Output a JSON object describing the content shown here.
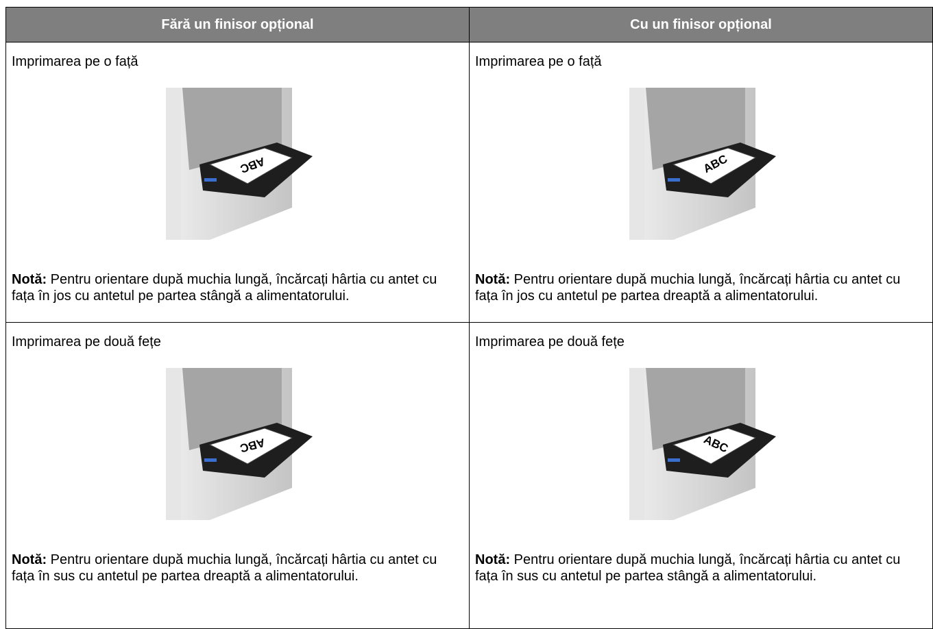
{
  "table": {
    "headers": [
      "Fără un finisor opțional",
      "Cu un finisor opțional"
    ],
    "rows": [
      [
        {
          "heading": "Imprimarea pe o față",
          "paper_label": "ABC",
          "note_label": "Notă:",
          "note": "Pentru orientare după muchia lungă, încărcați hârtia cu antet cu fața în jos cu antetul pe partea stângă a alimentatorului."
        },
        {
          "heading": "Imprimarea pe o față",
          "paper_label": "ABC",
          "note_label": "Notă:",
          "note": "Pentru orientare după muchia lungă, încărcați hârtia cu antet cu fața în jos cu antetul pe partea dreaptă a alimentatorului."
        }
      ],
      [
        {
          "heading": "Imprimarea pe două fețe",
          "paper_label": "ABC",
          "note_label": "Notă:",
          "note": "Pentru orientare după muchia lungă, încărcați hârtia cu antet cu fața în sus cu antetul pe partea dreaptă a alimentatorului."
        },
        {
          "heading": "Imprimarea pe două fețe",
          "paper_label": "ABC",
          "note_label": "Notă:",
          "note": "Pentru orientare după muchia lungă, încărcați hârtia cu antet cu fața în sus cu antetul pe partea stângă a alimentatorului."
        }
      ]
    ]
  }
}
